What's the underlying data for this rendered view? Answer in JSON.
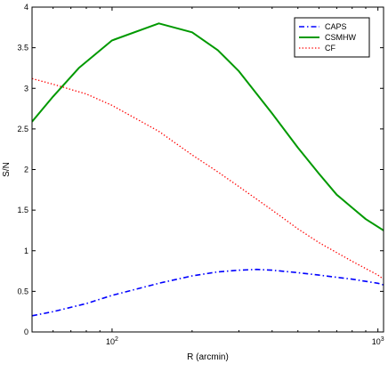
{
  "chart_data": {
    "type": "line",
    "title": "",
    "xlabel": "R (arcmin)",
    "ylabel": "S/N",
    "xscale": "log",
    "xlim": [
      50,
      1050
    ],
    "ylim": [
      0,
      4
    ],
    "grid": false,
    "legend_position": "top-right",
    "x_ticks": [
      {
        "value": 100,
        "base": "10",
        "exp": "2"
      },
      {
        "value": 1000,
        "base": "10",
        "exp": "3"
      }
    ],
    "y_ticks": [
      {
        "value": 0,
        "label": "0"
      },
      {
        "value": 0.5,
        "label": "0.5"
      },
      {
        "value": 1,
        "label": "1"
      },
      {
        "value": 1.5,
        "label": "1.5"
      },
      {
        "value": 2,
        "label": "2"
      },
      {
        "value": 2.5,
        "label": "2.5"
      },
      {
        "value": 3,
        "label": "3"
      },
      {
        "value": 3.5,
        "label": "3.5"
      },
      {
        "value": 4,
        "label": "4"
      }
    ],
    "series": [
      {
        "name": "CAPS",
        "color": "#0000ff",
        "style": "dashdot",
        "x": [
          50,
          60,
          80,
          100,
          150,
          200,
          250,
          300,
          350,
          400,
          500,
          600,
          800,
          1000,
          1050
        ],
        "y": [
          0.2,
          0.25,
          0.35,
          0.45,
          0.6,
          0.69,
          0.74,
          0.76,
          0.77,
          0.76,
          0.73,
          0.7,
          0.65,
          0.6,
          0.58
        ]
      },
      {
        "name": "CSMHW",
        "color": "#009900",
        "style": "solid",
        "x": [
          50,
          60,
          75,
          100,
          150,
          200,
          250,
          300,
          400,
          500,
          600,
          700,
          800,
          900,
          1050
        ],
        "y": [
          2.59,
          2.9,
          3.25,
          3.59,
          3.8,
          3.69,
          3.47,
          3.21,
          2.69,
          2.27,
          1.95,
          1.69,
          1.53,
          1.39,
          1.25
        ]
      },
      {
        "name": "CF",
        "color": "#ff0000",
        "style": "dotted",
        "x": [
          50,
          60,
          80,
          100,
          150,
          200,
          250,
          300,
          400,
          500,
          600,
          800,
          1000,
          1050
        ],
        "y": [
          3.12,
          3.05,
          2.93,
          2.79,
          2.47,
          2.18,
          1.97,
          1.79,
          1.5,
          1.27,
          1.1,
          0.87,
          0.7,
          0.65
        ]
      }
    ]
  }
}
